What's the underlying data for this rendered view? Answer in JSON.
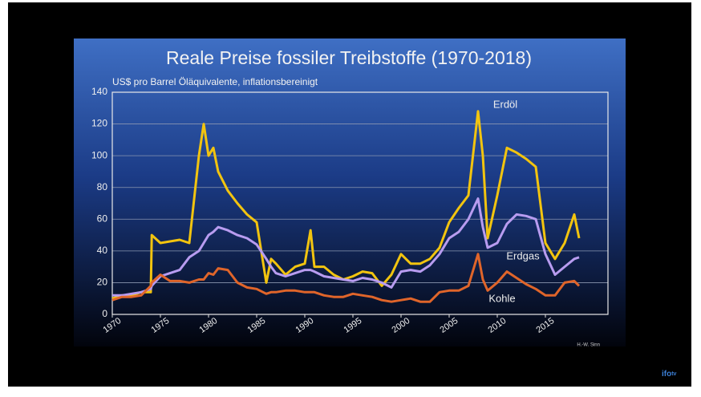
{
  "chart_data": {
    "type": "line",
    "title": "Reale Preise fossiler Treibstoffe (1970-2018)",
    "subtitle": "US$ pro Barrel Öläquivalente, inflationsbereinigt",
    "credit": "H.-W. Sinn",
    "logo": "ifo",
    "logo_suffix": "tv",
    "x": [
      1970,
      1971,
      1972,
      1973,
      1974,
      1974.1,
      1975,
      1976,
      1977,
      1978,
      1979,
      1979.5,
      1980,
      1980.5,
      1981,
      1982,
      1983,
      1984,
      1985,
      1986,
      1986.5,
      1987,
      1988,
      1989,
      1990,
      1990.6,
      1991,
      1992,
      1993,
      1994,
      1995,
      1996,
      1997,
      1998,
      1999,
      2000,
      2001,
      2002,
      2003,
      2004,
      2005,
      2006,
      2007,
      2008,
      2008.5,
      2009,
      2010,
      2011,
      2012,
      2013,
      2014,
      2015,
      2016,
      2017,
      2018,
      2018.5
    ],
    "series": [
      {
        "name": "Erdöl",
        "color": "#f2c40f",
        "values": [
          10,
          12,
          12,
          14,
          14,
          50,
          45,
          46,
          47,
          45,
          100,
          120,
          100,
          105,
          90,
          78,
          70,
          63,
          58,
          20,
          35,
          32,
          25,
          30,
          32,
          53,
          30,
          30,
          25,
          22,
          24,
          27,
          26,
          18,
          25,
          38,
          32,
          32,
          35,
          42,
          58,
          67,
          75,
          128,
          100,
          48,
          75,
          105,
          102,
          98,
          93,
          45,
          35,
          45,
          63,
          48
        ]
      },
      {
        "name": "Erdgas",
        "color": "#b89cf0",
        "values": [
          12,
          12,
          13,
          14,
          16,
          18,
          24,
          26,
          28,
          36,
          40,
          45,
          50,
          52,
          55,
          53,
          50,
          48,
          44,
          35,
          30,
          26,
          24,
          26,
          28,
          28,
          27,
          24,
          23,
          22,
          21,
          23,
          22,
          20,
          17,
          27,
          28,
          27,
          31,
          38,
          48,
          52,
          60,
          73,
          55,
          42,
          45,
          57,
          63,
          62,
          60,
          38,
          25,
          30,
          35,
          36
        ]
      },
      {
        "name": "Kohle",
        "color": "#e0652a",
        "values": [
          9,
          11,
          11,
          12,
          18,
          20,
          25,
          21,
          21,
          20,
          22,
          22,
          26,
          25,
          29,
          28,
          20,
          17,
          16,
          13,
          14,
          14,
          15,
          15,
          14,
          14,
          14,
          12,
          11,
          11,
          13,
          12,
          11,
          9,
          8,
          9,
          10,
          8,
          8,
          14,
          15,
          15,
          18,
          38,
          22,
          15,
          20,
          27,
          23,
          19,
          16,
          12,
          12,
          20,
          21,
          18
        ]
      }
    ],
    "xlim": [
      1970,
      2021.5
    ],
    "xticks": [
      1970,
      1975,
      1980,
      1985,
      1990,
      1995,
      2000,
      2005,
      2010,
      2015
    ],
    "ylim": [
      0,
      140
    ],
    "yticks": [
      0,
      20,
      40,
      60,
      80,
      100,
      120,
      140
    ],
    "grid": true
  }
}
